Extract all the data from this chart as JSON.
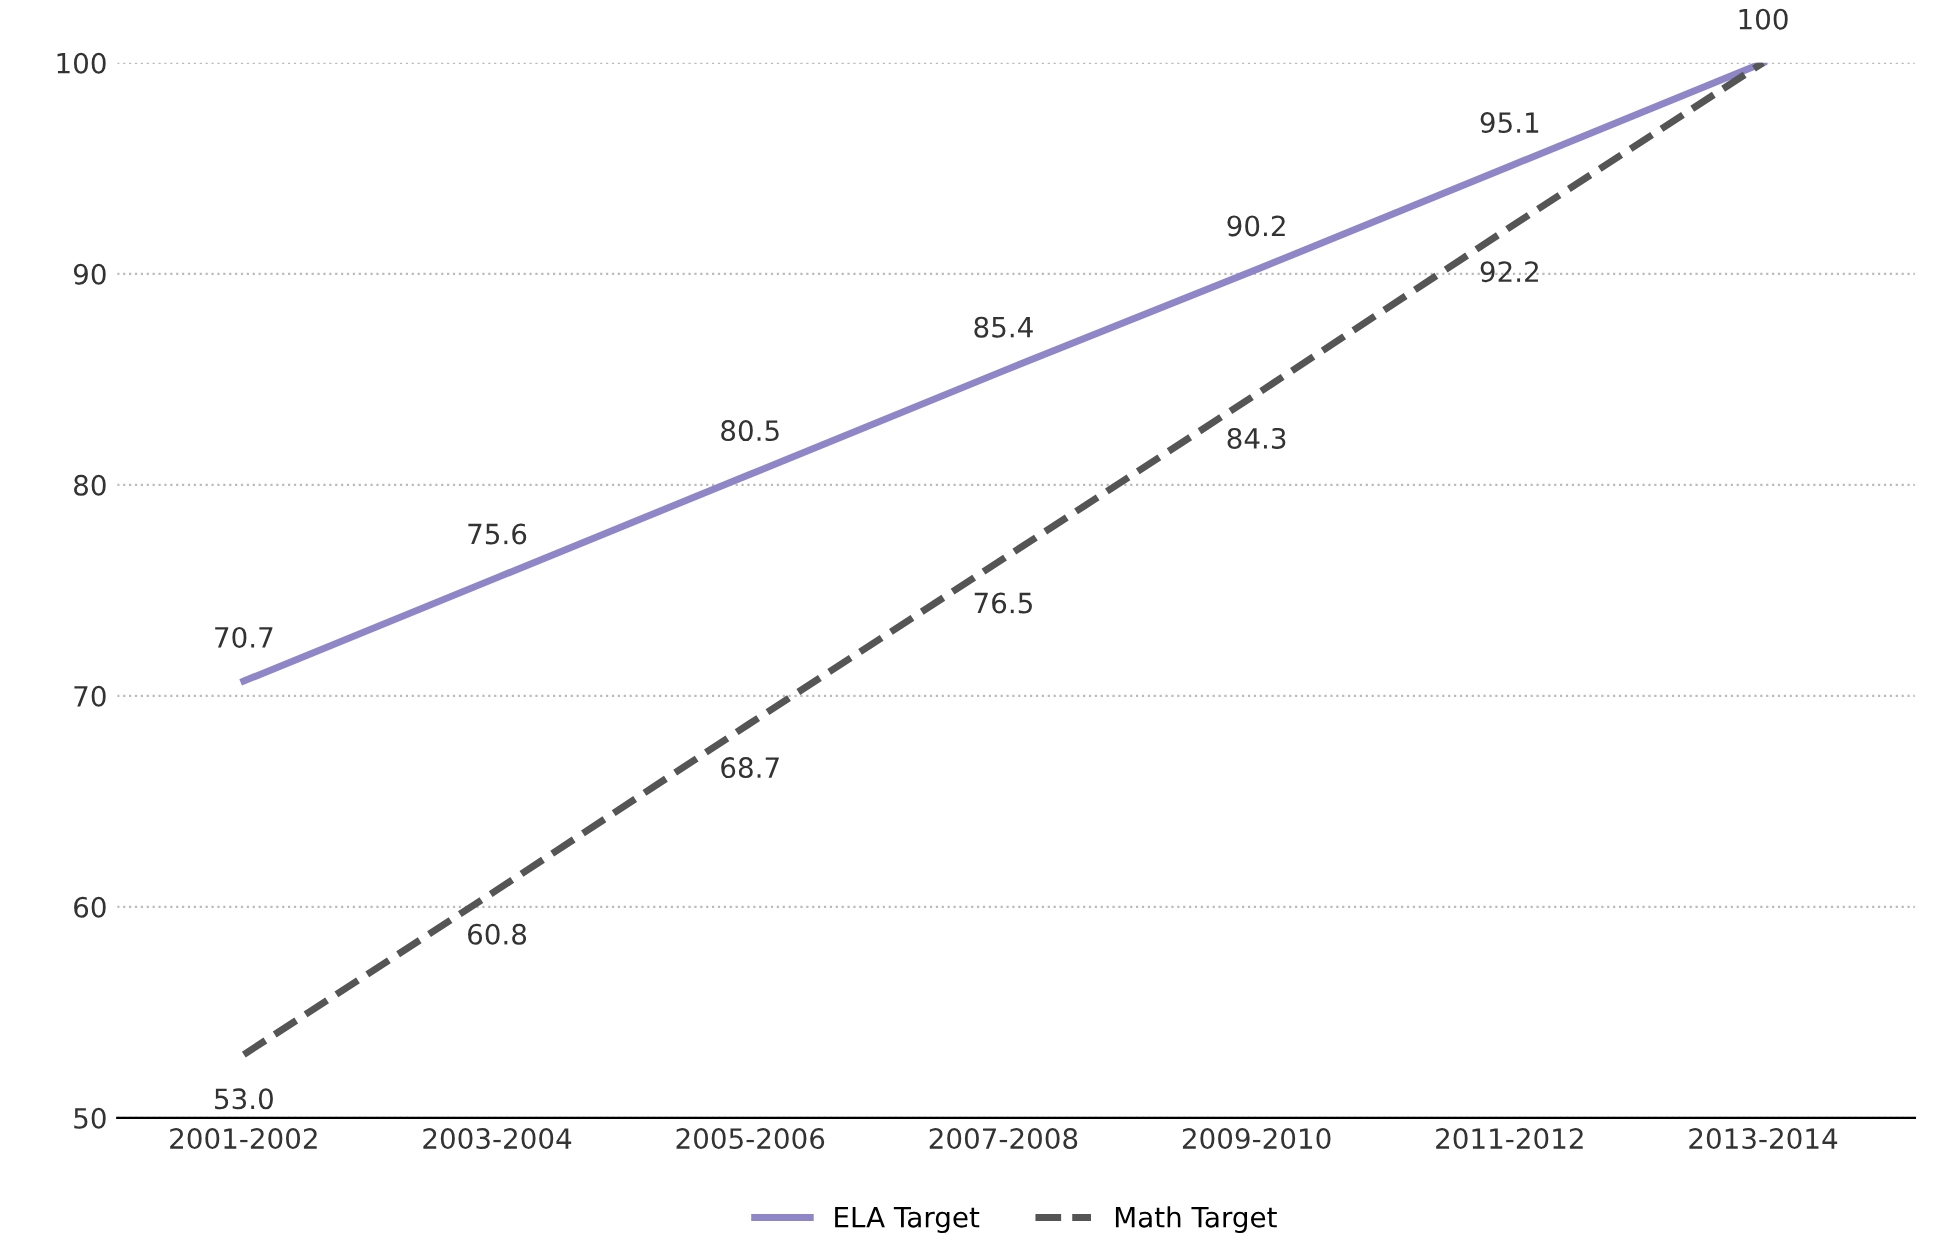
{
  "chart_data": {
    "type": "line",
    "categories": [
      "2001-2002",
      "2003-2004",
      "2005-2006",
      "2007-2008",
      "2009-2010",
      "2011-2012",
      "2013-2014"
    ],
    "series": [
      {
        "name": "ELA Target",
        "color": "#8f86c8",
        "line_style": "solid",
        "values": [
          70.7,
          75.6,
          80.5,
          85.4,
          90.2,
          95.1,
          100
        ],
        "value_labels": [
          "70.7",
          "75.6",
          "80.5",
          "85.4",
          "90.2",
          "95.1",
          "100"
        ]
      },
      {
        "name": "Math Target",
        "color": "#555555",
        "line_style": "dashed",
        "values": [
          53.0,
          60.8,
          68.7,
          76.5,
          84.3,
          92.2,
          100
        ],
        "value_labels": [
          "53.0",
          "60.8",
          "68.7",
          "76.5",
          "84.3",
          "92.2",
          null
        ]
      }
    ],
    "ylim": [
      50,
      100
    ],
    "yticks": [
      50,
      60,
      70,
      80,
      90,
      100
    ],
    "grid": "y",
    "legend": "bottom",
    "marker": "none"
  }
}
